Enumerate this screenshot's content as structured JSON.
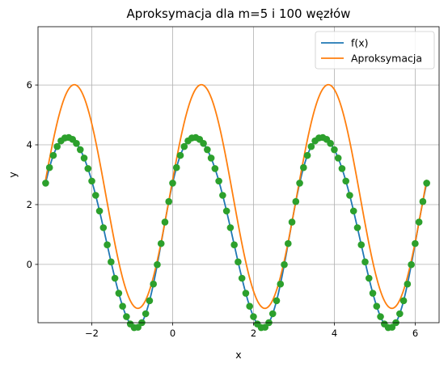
{
  "chart_data": {
    "type": "line",
    "title": "Aproksymacja dla m=5 i 100 węzłów",
    "xlabel": "x",
    "ylabel": "y",
    "xlim": [
      -3.33,
      6.59
    ],
    "ylim": [
      -1.95,
      7.95
    ],
    "xticks": [
      -2,
      0,
      2,
      4,
      6
    ],
    "yticks": [
      0,
      2,
      4,
      6
    ],
    "grid": true,
    "legend": {
      "placement": "top-right",
      "entries": [
        "f(x)",
        "Aproksymacja"
      ]
    },
    "series": [
      {
        "name": "f(x)",
        "color": "#1f77b4",
        "role": "line",
        "function": "exp(cos(2x)) + 3*sin(2x)",
        "x_range": [
          -3.14159,
          6.28319
        ]
      },
      {
        "name": "Aproksymacja",
        "color": "#ff7f0e",
        "role": "line",
        "function": "2.27 + 3.74*sin(2x+0.15)",
        "x_range": [
          -3.14159,
          6.28319
        ]
      },
      {
        "name": "",
        "color": "#2ca02c",
        "role": "markers",
        "nodes": 100,
        "x_range": [
          -3.14159,
          6.28319
        ]
      }
    ]
  }
}
